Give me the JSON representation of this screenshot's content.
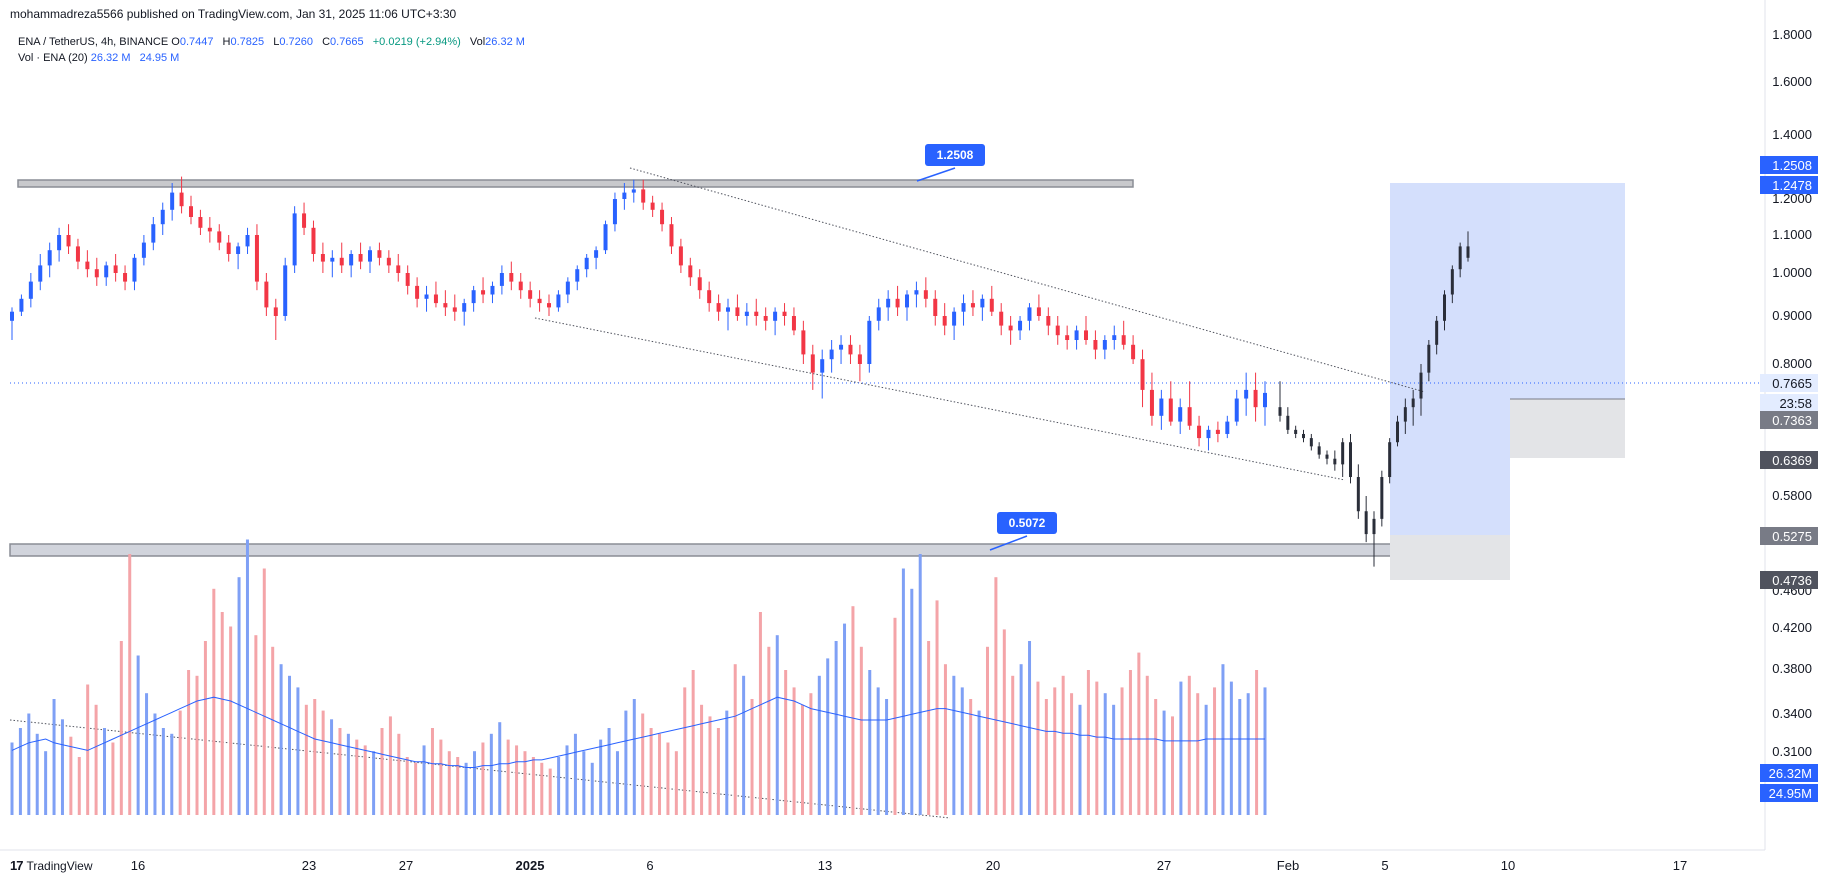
{
  "header": {
    "published": "mohammadreza5566 published on TradingView.com, Jan 31, 2025 11:06 UTC+3:30"
  },
  "legend": {
    "symbol": "ENA / TetherUS, 4h, BINANCE",
    "o_label": "O",
    "o_value": "0.7447",
    "h_label": "H",
    "h_value": "0.7825",
    "l_label": "L",
    "l_value": "0.7260",
    "c_label": "C",
    "c_value": "0.7665",
    "change": "+0.0219 (+2.94%)",
    "vol_label": "Vol",
    "vol_value": "26.32 M",
    "vol_ma_label": "Vol · ENA (20)",
    "vol_ma_value1": "26.32 M",
    "vol_ma_value2": "24.95 M"
  },
  "footer": {
    "brand_mark": "17",
    "brand": "TradingView"
  },
  "chart_data": {
    "type": "candlestick",
    "title": "ENA / TetherUS, 4h, BINANCE",
    "y_ticks": [
      "1.8000",
      "1.6000",
      "1.4000",
      "1.2000",
      "1.1000",
      "1.0000",
      "0.9000",
      "0.8000",
      "0.5800",
      "0.4600",
      "0.4200",
      "0.3800",
      "0.3400",
      "0.3100"
    ],
    "x_ticks": [
      "16",
      "23",
      "27",
      "2025",
      "6",
      "13",
      "20",
      "27",
      "Feb",
      "5",
      "10",
      "17"
    ],
    "price_tags": [
      {
        "text": "1.2508",
        "bg": "#2962ff",
        "fg": "#ffffff"
      },
      {
        "text": "1.2478",
        "bg": "#2962ff",
        "fg": "#ffffff"
      },
      {
        "text": "0.7665",
        "bg": "#e3ecff",
        "fg": "#131722"
      },
      {
        "text": "23:58",
        "bg": "#e3ecff",
        "fg": "#131722"
      },
      {
        "text": "0.7363",
        "bg": "#787b86",
        "fg": "#ffffff"
      },
      {
        "text": "0.6369",
        "bg": "#50535e",
        "fg": "#ffffff"
      },
      {
        "text": "0.5275",
        "bg": "#787b86",
        "fg": "#ffffff"
      },
      {
        "text": "0.4736",
        "bg": "#50535e",
        "fg": "#ffffff"
      },
      {
        "text": "26.32M",
        "bg": "#2962ff",
        "fg": "#ffffff"
      },
      {
        "text": "24.95M",
        "bg": "#2962ff",
        "fg": "#ffffff"
      }
    ],
    "annotations": [
      {
        "label": "1.2508",
        "type": "resistance-zone"
      },
      {
        "label": "0.5072",
        "type": "support-zone"
      }
    ],
    "candles": [
      [
        0.89,
        0.92,
        0.85,
        0.91
      ],
      [
        0.91,
        0.95,
        0.9,
        0.94
      ],
      [
        0.94,
        1.0,
        0.92,
        0.98
      ],
      [
        0.98,
        1.05,
        0.96,
        1.02
      ],
      [
        1.02,
        1.08,
        0.99,
        1.06
      ],
      [
        1.06,
        1.12,
        1.03,
        1.1
      ],
      [
        1.1,
        1.13,
        1.05,
        1.07
      ],
      [
        1.07,
        1.09,
        1.01,
        1.03
      ],
      [
        1.03,
        1.06,
        0.99,
        1.01
      ],
      [
        1.01,
        1.04,
        0.97,
        0.99
      ],
      [
        0.99,
        1.03,
        0.97,
        1.02
      ],
      [
        1.02,
        1.05,
        0.98,
        1.0
      ],
      [
        1.0,
        1.02,
        0.96,
        0.98
      ],
      [
        0.98,
        1.05,
        0.96,
        1.04
      ],
      [
        1.04,
        1.1,
        1.02,
        1.08
      ],
      [
        1.08,
        1.15,
        1.06,
        1.13
      ],
      [
        1.13,
        1.19,
        1.1,
        1.17
      ],
      [
        1.17,
        1.25,
        1.14,
        1.22
      ],
      [
        1.22,
        1.27,
        1.16,
        1.18
      ],
      [
        1.18,
        1.21,
        1.13,
        1.15
      ],
      [
        1.15,
        1.17,
        1.1,
        1.12
      ],
      [
        1.12,
        1.15,
        1.08,
        1.11
      ],
      [
        1.11,
        1.13,
        1.06,
        1.08
      ],
      [
        1.08,
        1.1,
        1.03,
        1.05
      ],
      [
        1.05,
        1.08,
        1.01,
        1.07
      ],
      [
        1.07,
        1.12,
        1.05,
        1.1
      ],
      [
        1.1,
        1.13,
        0.96,
        0.98
      ],
      [
        0.98,
        1.0,
        0.9,
        0.92
      ],
      [
        0.92,
        0.94,
        0.85,
        0.9
      ],
      [
        0.9,
        1.04,
        0.89,
        1.02
      ],
      [
        1.02,
        1.18,
        1.0,
        1.16
      ],
      [
        1.16,
        1.19,
        1.1,
        1.12
      ],
      [
        1.12,
        1.14,
        1.03,
        1.05
      ],
      [
        1.05,
        1.08,
        1.0,
        1.03
      ],
      [
        1.03,
        1.06,
        0.99,
        1.04
      ],
      [
        1.04,
        1.08,
        1.0,
        1.02
      ],
      [
        1.02,
        1.06,
        0.99,
        1.05
      ],
      [
        1.05,
        1.08,
        1.01,
        1.03
      ],
      [
        1.03,
        1.07,
        1.0,
        1.06
      ],
      [
        1.06,
        1.08,
        1.02,
        1.04
      ],
      [
        1.04,
        1.06,
        1.0,
        1.02
      ],
      [
        1.02,
        1.05,
        0.98,
        1.0
      ],
      [
        1.0,
        1.02,
        0.95,
        0.97
      ],
      [
        0.97,
        0.99,
        0.92,
        0.94
      ],
      [
        0.94,
        0.97,
        0.91,
        0.95
      ],
      [
        0.95,
        0.98,
        0.92,
        0.93
      ],
      [
        0.93,
        0.96,
        0.9,
        0.92
      ],
      [
        0.92,
        0.95,
        0.89,
        0.91
      ],
      [
        0.91,
        0.94,
        0.88,
        0.93
      ],
      [
        0.93,
        0.97,
        0.91,
        0.96
      ],
      [
        0.96,
        0.99,
        0.93,
        0.95
      ],
      [
        0.95,
        0.98,
        0.93,
        0.97
      ],
      [
        0.97,
        1.02,
        0.95,
        1.0
      ],
      [
        1.0,
        1.03,
        0.96,
        0.98
      ],
      [
        0.98,
        1.0,
        0.94,
        0.96
      ],
      [
        0.96,
        0.98,
        0.92,
        0.94
      ],
      [
        0.94,
        0.96,
        0.91,
        0.93
      ],
      [
        0.93,
        0.95,
        0.9,
        0.92
      ],
      [
        0.92,
        0.96,
        0.91,
        0.95
      ],
      [
        0.95,
        0.99,
        0.93,
        0.98
      ],
      [
        0.98,
        1.02,
        0.96,
        1.01
      ],
      [
        1.01,
        1.05,
        0.99,
        1.04
      ],
      [
        1.04,
        1.07,
        1.01,
        1.06
      ],
      [
        1.06,
        1.14,
        1.05,
        1.13
      ],
      [
        1.13,
        1.22,
        1.11,
        1.2
      ],
      [
        1.2,
        1.25,
        1.17,
        1.22
      ],
      [
        1.22,
        1.26,
        1.19,
        1.23
      ],
      [
        1.23,
        1.26,
        1.17,
        1.19
      ],
      [
        1.19,
        1.21,
        1.15,
        1.17
      ],
      [
        1.17,
        1.19,
        1.11,
        1.13
      ],
      [
        1.13,
        1.15,
        1.05,
        1.07
      ],
      [
        1.07,
        1.09,
        1.0,
        1.02
      ],
      [
        1.02,
        1.04,
        0.97,
        0.99
      ],
      [
        0.99,
        1.01,
        0.94,
        0.96
      ],
      [
        0.96,
        0.98,
        0.91,
        0.93
      ],
      [
        0.93,
        0.95,
        0.89,
        0.91
      ],
      [
        0.91,
        0.94,
        0.87,
        0.92
      ],
      [
        0.92,
        0.95,
        0.89,
        0.9
      ],
      [
        0.9,
        0.93,
        0.88,
        0.91
      ],
      [
        0.91,
        0.94,
        0.88,
        0.9
      ],
      [
        0.9,
        0.92,
        0.87,
        0.89
      ],
      [
        0.89,
        0.92,
        0.86,
        0.91
      ],
      [
        0.91,
        0.93,
        0.88,
        0.9
      ],
      [
        0.9,
        0.92,
        0.86,
        0.87
      ],
      [
        0.87,
        0.89,
        0.8,
        0.82
      ],
      [
        0.82,
        0.84,
        0.77,
        0.79
      ],
      [
        0.79,
        0.83,
        0.76,
        0.81
      ],
      [
        0.81,
        0.85,
        0.79,
        0.83
      ],
      [
        0.83,
        0.86,
        0.8,
        0.84
      ],
      [
        0.84,
        0.86,
        0.8,
        0.82
      ],
      [
        0.82,
        0.84,
        0.78,
        0.8
      ],
      [
        0.8,
        0.9,
        0.79,
        0.89
      ],
      [
        0.89,
        0.94,
        0.87,
        0.92
      ],
      [
        0.92,
        0.96,
        0.89,
        0.94
      ],
      [
        0.94,
        0.97,
        0.9,
        0.92
      ],
      [
        0.92,
        0.96,
        0.89,
        0.95
      ],
      [
        0.95,
        0.98,
        0.92,
        0.96
      ],
      [
        0.96,
        0.99,
        0.92,
        0.94
      ],
      [
        0.94,
        0.96,
        0.88,
        0.9
      ],
      [
        0.9,
        0.93,
        0.86,
        0.88
      ],
      [
        0.88,
        0.92,
        0.85,
        0.91
      ],
      [
        0.91,
        0.95,
        0.88,
        0.93
      ],
      [
        0.93,
        0.96,
        0.9,
        0.92
      ],
      [
        0.92,
        0.95,
        0.89,
        0.94
      ],
      [
        0.94,
        0.97,
        0.9,
        0.91
      ],
      [
        0.91,
        0.93,
        0.86,
        0.88
      ],
      [
        0.88,
        0.9,
        0.84,
        0.87
      ],
      [
        0.87,
        0.9,
        0.85,
        0.89
      ],
      [
        0.89,
        0.93,
        0.87,
        0.92
      ],
      [
        0.92,
        0.95,
        0.89,
        0.9
      ],
      [
        0.9,
        0.92,
        0.86,
        0.88
      ],
      [
        0.88,
        0.9,
        0.84,
        0.86
      ],
      [
        0.86,
        0.88,
        0.83,
        0.85
      ],
      [
        0.85,
        0.88,
        0.83,
        0.87
      ],
      [
        0.87,
        0.9,
        0.84,
        0.85
      ],
      [
        0.85,
        0.87,
        0.81,
        0.83
      ],
      [
        0.83,
        0.86,
        0.81,
        0.85
      ],
      [
        0.85,
        0.88,
        0.83,
        0.86
      ],
      [
        0.86,
        0.89,
        0.83,
        0.84
      ],
      [
        0.84,
        0.86,
        0.8,
        0.81
      ],
      [
        0.81,
        0.83,
        0.75,
        0.77
      ],
      [
        0.77,
        0.79,
        0.72,
        0.74
      ],
      [
        0.74,
        0.77,
        0.71,
        0.76
      ],
      [
        0.76,
        0.78,
        0.72,
        0.73
      ],
      [
        0.73,
        0.76,
        0.7,
        0.75
      ],
      [
        0.75,
        0.78,
        0.71,
        0.72
      ],
      [
        0.72,
        0.74,
        0.67,
        0.69
      ],
      [
        0.69,
        0.72,
        0.66,
        0.71
      ],
      [
        0.71,
        0.73,
        0.68,
        0.7
      ],
      [
        0.7,
        0.74,
        0.69,
        0.73
      ],
      [
        0.73,
        0.77,
        0.72,
        0.76
      ],
      [
        0.76,
        0.79,
        0.74,
        0.77
      ],
      [
        0.77,
        0.79,
        0.73,
        0.75
      ],
      [
        0.75,
        0.78,
        0.72,
        0.7665
      ]
    ],
    "projection": [
      [
        0.75,
        0.78,
        0.73,
        0.74
      ],
      [
        0.74,
        0.75,
        0.7,
        0.71
      ],
      [
        0.71,
        0.72,
        0.69,
        0.7
      ],
      [
        0.7,
        0.71,
        0.68,
        0.69
      ],
      [
        0.69,
        0.7,
        0.66,
        0.67
      ],
      [
        0.67,
        0.68,
        0.64,
        0.65
      ],
      [
        0.65,
        0.66,
        0.63,
        0.64
      ],
      [
        0.64,
        0.66,
        0.62,
        0.63
      ],
      [
        0.63,
        0.69,
        0.61,
        0.68
      ],
      [
        0.68,
        0.7,
        0.6,
        0.61
      ],
      [
        0.61,
        0.63,
        0.55,
        0.56
      ],
      [
        0.56,
        0.58,
        0.52,
        0.53
      ],
      [
        0.53,
        0.56,
        0.49,
        0.55
      ],
      [
        0.55,
        0.62,
        0.54,
        0.61
      ],
      [
        0.61,
        0.69,
        0.6,
        0.68
      ],
      [
        0.68,
        0.74,
        0.67,
        0.73
      ],
      [
        0.73,
        0.76,
        0.7,
        0.75
      ],
      [
        0.75,
        0.77,
        0.72,
        0.76
      ],
      [
        0.76,
        0.8,
        0.74,
        0.79
      ],
      [
        0.79,
        0.85,
        0.78,
        0.84
      ],
      [
        0.84,
        0.9,
        0.82,
        0.89
      ],
      [
        0.89,
        0.96,
        0.87,
        0.95
      ],
      [
        0.95,
        1.02,
        0.93,
        1.01
      ],
      [
        1.01,
        1.08,
        0.99,
        1.07
      ],
      [
        1.07,
        1.11,
        1.03,
        1.04
      ]
    ],
    "volume": [
      25,
      30,
      35,
      28,
      22,
      40,
      33,
      27,
      20,
      45,
      38,
      30,
      25,
      60,
      90,
      55,
      42,
      35,
      30,
      28,
      36,
      50,
      48,
      60,
      78,
      70,
      65,
      82,
      95,
      62,
      85,
      58,
      52,
      48,
      44,
      38,
      40,
      36,
      33,
      30,
      28,
      26,
      24,
      22,
      30,
      34,
      28,
      20,
      18,
      24,
      30,
      26,
      22,
      20,
      18,
      22,
      25,
      28,
      32,
      26,
      24,
      22,
      20,
      18,
      16,
      20,
      24,
      28,
      22,
      18,
      26,
      30,
      22,
      36,
      40,
      35,
      30,
      28,
      25,
      22,
      44,
      50,
      38,
      34,
      30,
      36,
      52,
      48,
      40,
      70,
      58,
      62,
      50,
      44,
      38,
      42,
      48,
      54,
      60,
      66,
      72,
      58,
      50,
      44,
      40,
      68,
      85,
      78,
      90,
      60,
      74,
      52,
      48,
      44,
      40,
      36,
      58,
      82,
      64,
      48,
      52,
      60,
      46,
      40,
      44,
      48,
      42,
      38,
      50,
      46,
      42,
      38,
      44,
      50,
      56,
      48,
      40,
      36,
      34,
      46,
      48,
      42,
      38,
      44,
      52,
      46,
      40,
      42,
      50,
      44
    ],
    "volume_ma": [
      34,
      36,
      38,
      39,
      40,
      38,
      37,
      36,
      35,
      34,
      36,
      38,
      40,
      42,
      44,
      46,
      48,
      50,
      52,
      54,
      56,
      58,
      60,
      61,
      62,
      61,
      60,
      58,
      56,
      54,
      52,
      50,
      48,
      46,
      44,
      42,
      40,
      39,
      38,
      37,
      36,
      35,
      34,
      33,
      32,
      31,
      30,
      29,
      28,
      28,
      27,
      27,
      26,
      26,
      25,
      25,
      26,
      26,
      27,
      27,
      28,
      28,
      29,
      29,
      30,
      31,
      32,
      33,
      34,
      35,
      36,
      37,
      38,
      39,
      40,
      41,
      42,
      43,
      44,
      45,
      46,
      47,
      48,
      49,
      50,
      51,
      52,
      54,
      56,
      58,
      60,
      62,
      61,
      60,
      58,
      56,
      55,
      54,
      53,
      52,
      51,
      50,
      50,
      50,
      50,
      51,
      52,
      53,
      54,
      55,
      56,
      56,
      55,
      54,
      53,
      52,
      51,
      50,
      49,
      48,
      47,
      46,
      45,
      44,
      44,
      43,
      43,
      42,
      42,
      41,
      41,
      40,
      40,
      40,
      40,
      40,
      40,
      39,
      39,
      39,
      39,
      39,
      40,
      40,
      40,
      40,
      40,
      40,
      40,
      40
    ]
  }
}
